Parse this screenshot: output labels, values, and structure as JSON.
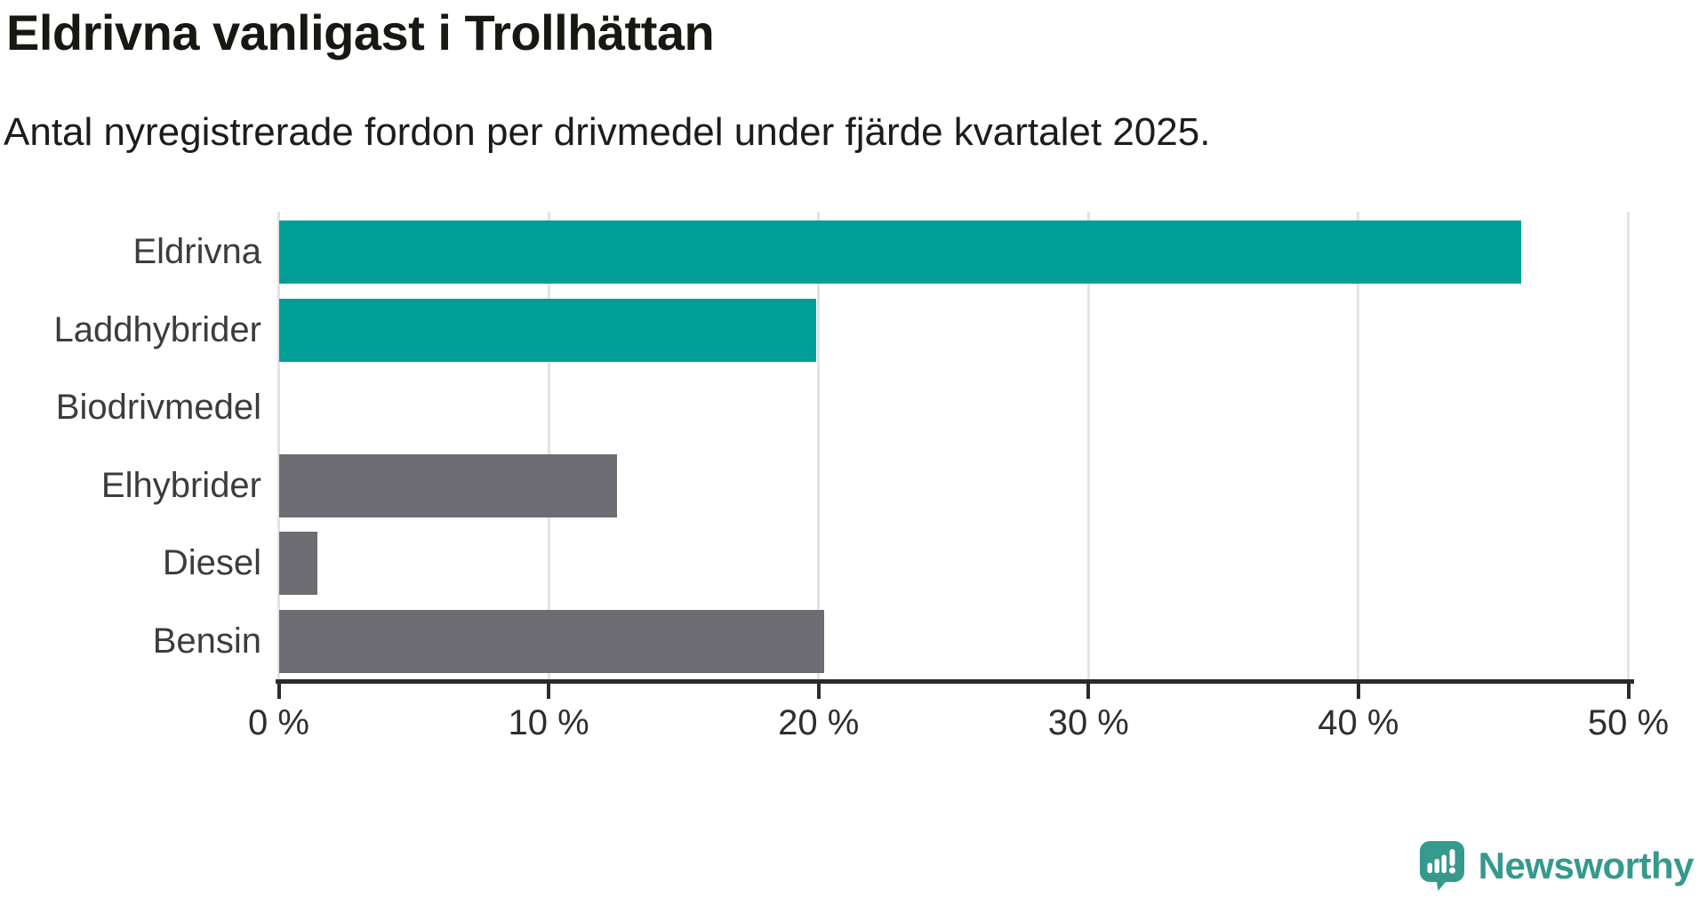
{
  "header": {
    "title": "Eldrivna vanligast i Trollhättan",
    "subtitle": "Antal nyregistrerade fordon per drivmedel under fjärde kvartalet 2025."
  },
  "chart_data": {
    "type": "bar",
    "orientation": "horizontal",
    "title": "Eldrivna vanligast i Trollhättan",
    "subtitle": "Antal nyregistrerade fordon per drivmedel under fjärde kvartalet 2025.",
    "categories": [
      "Eldrivna",
      "Laddhybrider",
      "Biodrivmedel",
      "Elhybrider",
      "Diesel",
      "Bensin"
    ],
    "values": [
      46,
      19.9,
      0,
      12.5,
      1.4,
      20.2
    ],
    "unit": "%",
    "bar_colors": [
      "#009E96",
      "#009E96",
      "#009E96",
      "#6C6C72",
      "#6C6C72",
      "#6C6C72"
    ],
    "x_ticks": [
      {
        "value": 0,
        "label": "0 %"
      },
      {
        "value": 10,
        "label": "10 %"
      },
      {
        "value": 20,
        "label": "20 %"
      },
      {
        "value": 30,
        "label": "30 %"
      },
      {
        "value": 40,
        "label": "40 %"
      },
      {
        "value": 50,
        "label": "50 %"
      }
    ],
    "xlim": [
      0,
      50
    ],
    "grid": true,
    "legend": "none",
    "ylabel": "",
    "xlabel": ""
  },
  "colors": {
    "accent_teal": "#009E96",
    "neutral_gray": "#6C6C72",
    "brand_teal": "#35998E",
    "grid_gray": "#e3e3e3",
    "axis_dark": "#2b2b2b"
  },
  "footer": {
    "brand": "Newsworthy",
    "logo_icon": "newsworthy-speech-bubble-chart-icon"
  }
}
